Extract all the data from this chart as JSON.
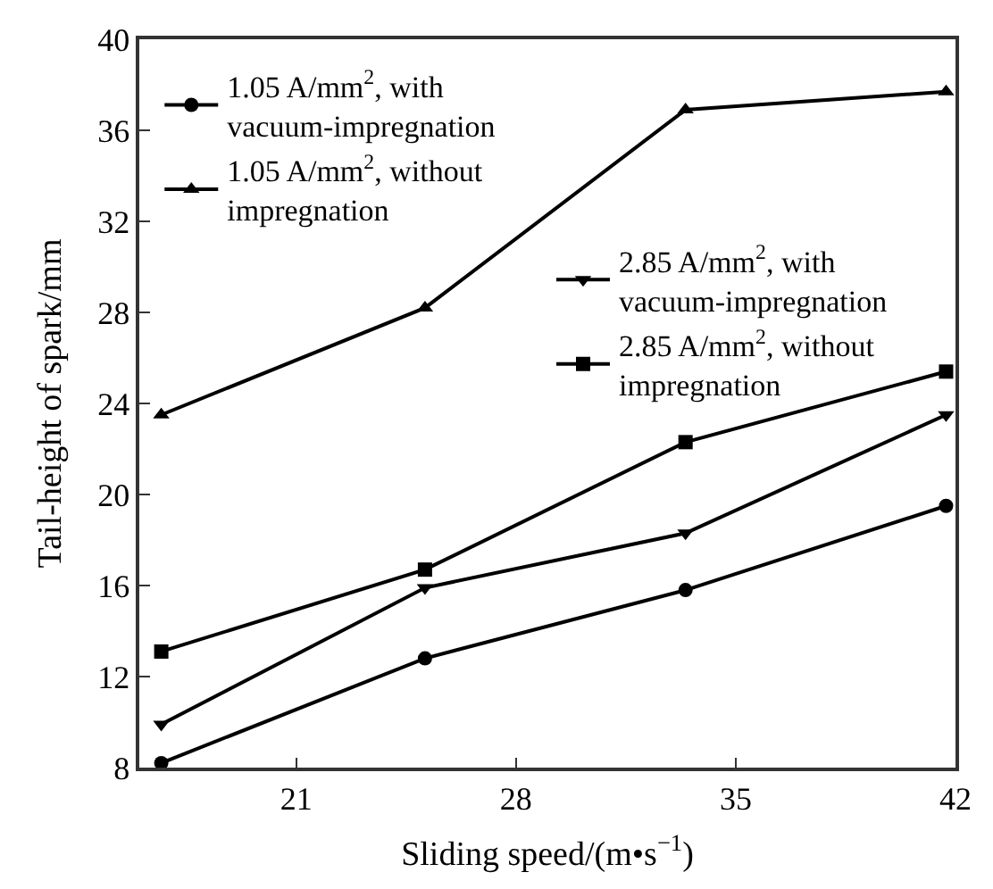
{
  "chart_data": {
    "type": "line",
    "xlabel": "Sliding speed/(m•s$^{−1}$)",
    "ylabel": "Tail-height of spark/mm",
    "x": [
      16.7,
      25.1,
      33.4,
      41.7
    ],
    "series": [
      {
        "name": "1.05 A/mm$^{2}$, with\nvacuum-impregnation",
        "color": "#000000",
        "marker": "circle",
        "values": [
          8.2,
          12.8,
          15.8,
          19.5
        ]
      },
      {
        "name": "1.05 A/mm$^{2}$, without\nimpregnation",
        "color": "#000000",
        "marker": "triangle",
        "values": [
          23.5,
          28.2,
          36.9,
          37.7
        ]
      },
      {
        "name": "2.85 A/mm$^{2}$, with\nvacuum-impregnation",
        "color": "#000000",
        "marker": "triangle-down",
        "values": [
          9.9,
          15.9,
          18.3,
          23.5
        ]
      },
      {
        "name": "2.85 A/mm$^{2}$, without\nimpregnation",
        "color": "#000000",
        "marker": "square",
        "values": [
          13.1,
          16.7,
          22.3,
          25.4
        ]
      }
    ],
    "xlim": [
      16,
      42
    ],
    "xticks": [
      21,
      28,
      35,
      42
    ],
    "ylim": [
      8,
      40
    ],
    "yticks": [
      8,
      12,
      16,
      20,
      24,
      28,
      32,
      36,
      40
    ],
    "legend": "top left",
    "line_style": "solid"
  }
}
